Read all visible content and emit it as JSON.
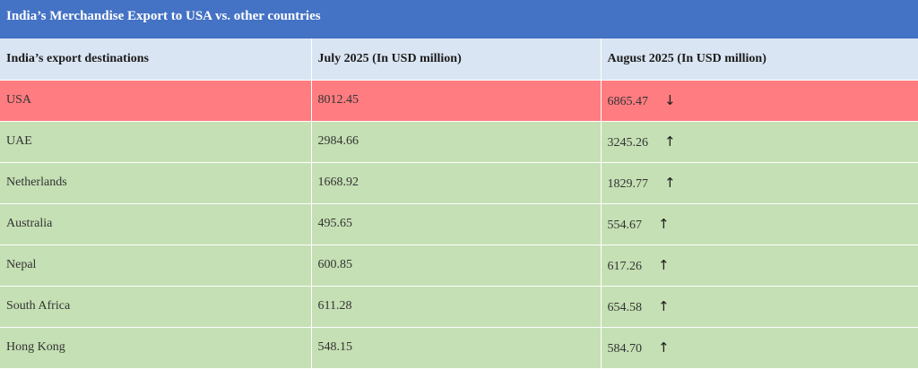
{
  "chart_data": {
    "type": "table",
    "title": "India’s Merchandise Export to USA vs. other countries",
    "columns": [
      "India’s export destinations",
      "July 2025 (In USD million)",
      "August 2025 (In USD million)"
    ],
    "rows": [
      {
        "country": "USA",
        "july": "8012.45",
        "august": "6865.47",
        "trend": "down",
        "arrow": "↓"
      },
      {
        "country": "UAE",
        "july": "2984.66",
        "august": "3245.26",
        "trend": "up",
        "arrow": "↑"
      },
      {
        "country": "Netherlands",
        "july": "1668.92",
        "august": "1829.77",
        "trend": "up",
        "arrow": "↑"
      },
      {
        "country": "Australia",
        "july": "495.65",
        "august": "554.67",
        "trend": "up",
        "arrow": "↑"
      },
      {
        "country": "Nepal",
        "july": "600.85",
        "august": "617.26",
        "trend": "up",
        "arrow": "↑"
      },
      {
        "country": "South Africa",
        "july": "611.28",
        "august": "654.58",
        "trend": "up",
        "arrow": "↑"
      },
      {
        "country": "Hong Kong",
        "july": "548.15",
        "august": "584.70",
        "trend": "up",
        "arrow": "↑"
      }
    ],
    "colors": {
      "title_bg": "#4472c4",
      "header_bg": "#dae5f3",
      "decrease_bg": "#ff7c80",
      "increase_bg": "#c5e0b4"
    }
  }
}
